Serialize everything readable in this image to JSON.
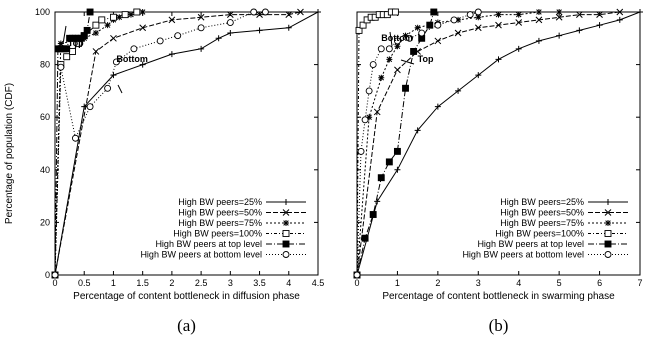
{
  "chart_data": [
    {
      "type": "line",
      "caption": "(a)",
      "xlabel": "Percentage of content bottleneck in diffusion phase",
      "ylabel": "Percentage of population (CDF)",
      "xlim": [
        0,
        4.5
      ],
      "ylim": [
        0,
        100
      ],
      "xticks": [
        "0",
        "0.5",
        "1",
        "1.5",
        "2",
        "2.5",
        "3",
        "3.5",
        "4",
        "4.5"
      ],
      "yticks": [
        "0",
        "20",
        "40",
        "60",
        "80",
        "100"
      ],
      "legend_position": "bottom-right",
      "annotations": [
        {
          "text": "Top",
          "x": 0.22,
          "y": 87
        },
        {
          "text": "Bottom",
          "x": 1.05,
          "y": 81
        }
      ],
      "series": [
        {
          "name": "High BW peers=25%",
          "marker": "plus",
          "x": [
            0,
            0.5,
            1.0,
            1.5,
            2.0,
            2.5,
            2.8,
            3.0,
            3.5,
            4.0,
            4.5
          ],
          "y": [
            0,
            64,
            76,
            80,
            84,
            86,
            90,
            92,
            93,
            94,
            100
          ]
        },
        {
          "name": "High BW peers=50%",
          "marker": "x",
          "x": [
            0,
            0.7,
            1.0,
            1.5,
            2.0,
            2.5,
            3.0,
            3.5,
            4.0,
            4.2
          ],
          "y": [
            0,
            85,
            90,
            94,
            97,
            98,
            99,
            99,
            99,
            100
          ]
        },
        {
          "name": "High BW peers=75%",
          "marker": "star",
          "x": [
            0,
            0.1,
            0.5,
            0.7,
            0.9,
            1.0,
            1.1,
            1.3,
            1.5
          ],
          "y": [
            0,
            88,
            90,
            92,
            95,
            97,
            98,
            99,
            100
          ]
        },
        {
          "name": "High BW peers=100%",
          "marker": "square",
          "x": [
            0,
            0.1,
            0.2,
            0.3,
            0.4,
            0.5,
            0.7,
            0.8,
            1.0,
            1.2,
            1.4
          ],
          "y": [
            0,
            80,
            83,
            85,
            88,
            91,
            95,
            97,
            98,
            99,
            100
          ]
        },
        {
          "name": "High BW peers at top level",
          "marker": "filled-square",
          "x": [
            0,
            0.05,
            0.1,
            0.15,
            0.2,
            0.25,
            0.3,
            0.35,
            0.4,
            0.45,
            0.5,
            0.55,
            0.6
          ],
          "y": [
            0,
            86,
            86,
            86,
            86,
            90,
            90,
            90,
            90,
            90,
            91,
            93,
            100
          ]
        },
        {
          "name": "High BW peers at bottom level",
          "marker": "circle",
          "x": [
            0,
            0.1,
            0.35,
            0.6,
            0.9,
            1.05,
            1.35,
            1.8,
            2.1,
            2.5,
            3.0,
            3.4,
            3.6
          ],
          "y": [
            0,
            79,
            52,
            64,
            71,
            81,
            86,
            89,
            91,
            94,
            96,
            100,
            100
          ]
        }
      ]
    },
    {
      "type": "line",
      "caption": "(b)",
      "xlabel": "Percentage of content bottleneck in swarming phase",
      "ylabel": "",
      "xlim": [
        0,
        7
      ],
      "ylim": [
        0,
        100
      ],
      "xticks": [
        "0",
        "1",
        "2",
        "3",
        "4",
        "5",
        "6",
        "7"
      ],
      "yticks": [],
      "legend_position": "bottom-right",
      "annotations": [
        {
          "text": "Bottom",
          "x": 0.6,
          "y": 89
        },
        {
          "text": "Top",
          "x": 1.5,
          "y": 81
        }
      ],
      "series": [
        {
          "name": "High BW peers=25%",
          "marker": "plus",
          "x": [
            0,
            0.5,
            1.0,
            1.5,
            2.0,
            2.5,
            3.0,
            3.5,
            4.0,
            4.5,
            5.0,
            5.5,
            6.0,
            6.5,
            7.0
          ],
          "y": [
            0,
            28,
            40,
            55,
            64,
            70,
            76,
            82,
            86,
            89,
            91,
            93,
            95,
            97,
            100
          ]
        },
        {
          "name": "High BW peers=50%",
          "marker": "x",
          "x": [
            0,
            0.5,
            1.0,
            1.5,
            2.0,
            2.5,
            3.0,
            3.5,
            4.0,
            4.5,
            5.0,
            5.5,
            6.0,
            6.5
          ],
          "y": [
            0,
            62,
            78,
            85,
            89,
            92,
            94,
            95,
            96,
            97,
            98,
            99,
            99,
            100
          ]
        },
        {
          "name": "High BW peers=75%",
          "marker": "star",
          "x": [
            0,
            0.3,
            0.6,
            0.8,
            1.0,
            1.2,
            1.5,
            2.0,
            2.5,
            3.0,
            3.5,
            4.0,
            4.5,
            5.0
          ],
          "y": [
            0,
            60,
            75,
            82,
            87,
            91,
            94,
            96,
            97,
            98,
            99,
            99,
            100,
            100
          ]
        },
        {
          "name": "High BW peers=100%",
          "marker": "square",
          "x": [
            0,
            0.05,
            0.15,
            0.25,
            0.35,
            0.45,
            0.55,
            0.65,
            0.75,
            0.85,
            0.95
          ],
          "y": [
            0,
            93,
            95,
            97,
            98,
            98,
            99,
            99,
            99,
            100,
            100
          ]
        },
        {
          "name": "High BW peers at top level",
          "marker": "filled-square",
          "x": [
            0,
            0.2,
            0.4,
            0.6,
            0.8,
            1.0,
            1.2,
            1.4,
            1.6,
            1.8,
            1.9
          ],
          "y": [
            0,
            14,
            23,
            37,
            43,
            47,
            71,
            85,
            90,
            95,
            100
          ]
        },
        {
          "name": "High BW peers at bottom level",
          "marker": "circle",
          "x": [
            0,
            0.1,
            0.2,
            0.3,
            0.4,
            0.6,
            0.8,
            1.0,
            1.3,
            1.6,
            2.0,
            2.4,
            2.8,
            3.0
          ],
          "y": [
            0,
            47,
            59,
            70,
            80,
            86,
            86,
            89,
            90,
            92,
            95,
            97,
            99,
            100
          ]
        }
      ]
    }
  ]
}
